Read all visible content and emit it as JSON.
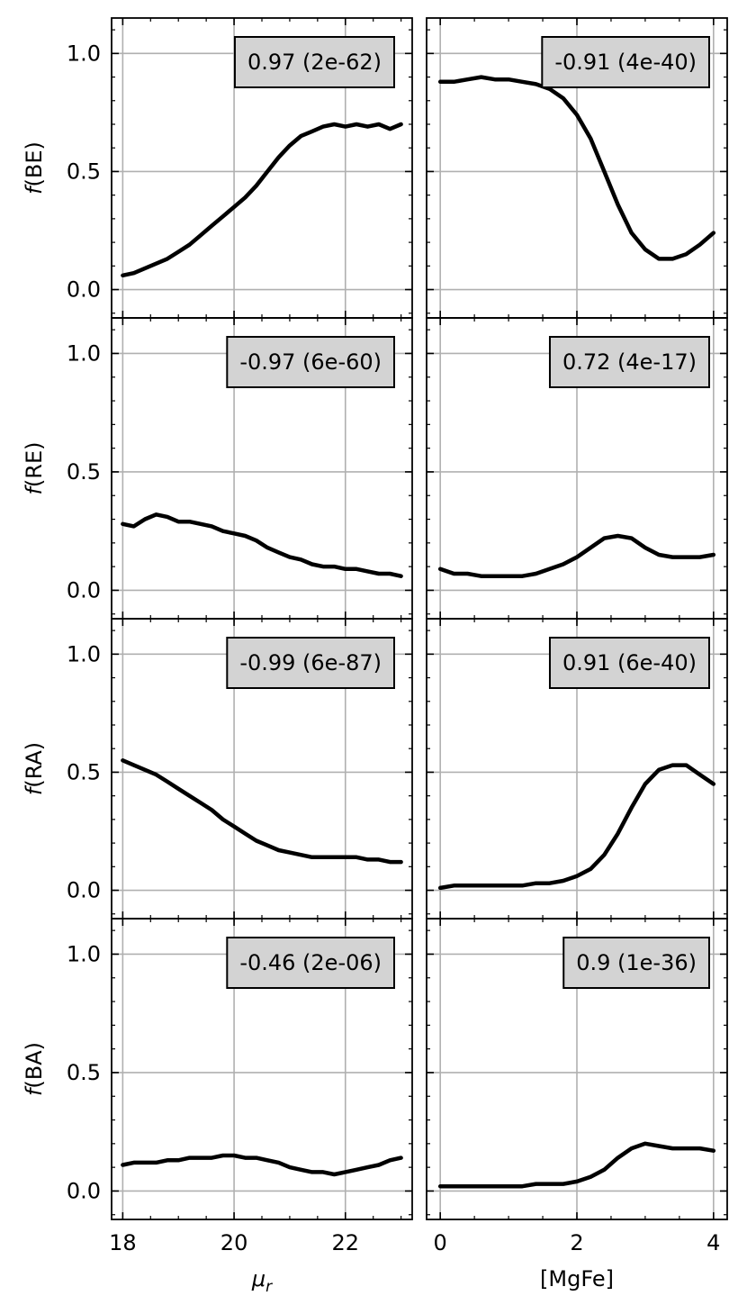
{
  "chart_data": {
    "type": "line",
    "layout": "4 rows x 2 columns",
    "x_axes": [
      {
        "label_base": "μ",
        "label_sub": "r",
        "xlim": [
          17.8,
          23.2
        ],
        "ticks": [
          18,
          20,
          22
        ],
        "tick_labels": [
          "18",
          "20",
          "22"
        ]
      },
      {
        "label": "[MgFe]",
        "xlim": [
          -0.2,
          4.2
        ],
        "ticks": [
          0,
          2,
          4
        ],
        "tick_labels": [
          "0",
          "2",
          "4"
        ]
      }
    ],
    "ylim": [
      -0.12,
      1.15
    ],
    "yticks": [
      0.0,
      0.5,
      1.0
    ],
    "ytick_labels": [
      "0.0",
      "0.5",
      "1.0"
    ],
    "grid": true,
    "line_color": "#000000",
    "annotation_box_color": "#d3d3d3",
    "rows": [
      {
        "ylabel_italic": "f",
        "ylabel_rest": "(BE)",
        "panels": [
          {
            "annotation": "0.97 (2e-62)",
            "x": [
              18.0,
              18.2,
              18.4,
              18.6,
              18.8,
              19.0,
              19.2,
              19.4,
              19.6,
              19.8,
              20.0,
              20.2,
              20.4,
              20.6,
              20.8,
              21.0,
              21.2,
              21.4,
              21.6,
              21.8,
              22.0,
              22.2,
              22.4,
              22.6,
              22.8,
              23.0
            ],
            "y": [
              0.06,
              0.07,
              0.09,
              0.11,
              0.13,
              0.16,
              0.19,
              0.23,
              0.27,
              0.31,
              0.35,
              0.39,
              0.44,
              0.5,
              0.56,
              0.61,
              0.65,
              0.67,
              0.69,
              0.7,
              0.69,
              0.7,
              0.69,
              0.7,
              0.68,
              0.7
            ]
          },
          {
            "annotation": "-0.91 (4e-40)",
            "x": [
              0.0,
              0.2,
              0.4,
              0.6,
              0.8,
              1.0,
              1.2,
              1.4,
              1.6,
              1.8,
              2.0,
              2.2,
              2.4,
              2.6,
              2.8,
              3.0,
              3.2,
              3.4,
              3.6,
              3.8,
              4.0
            ],
            "y": [
              0.88,
              0.88,
              0.89,
              0.9,
              0.89,
              0.89,
              0.88,
              0.87,
              0.85,
              0.81,
              0.74,
              0.64,
              0.5,
              0.36,
              0.24,
              0.17,
              0.13,
              0.13,
              0.15,
              0.19,
              0.24
            ]
          }
        ]
      },
      {
        "ylabel_italic": "f",
        "ylabel_rest": "(RE)",
        "panels": [
          {
            "annotation": "-0.97 (6e-60)",
            "x": [
              18.0,
              18.2,
              18.4,
              18.6,
              18.8,
              19.0,
              19.2,
              19.4,
              19.6,
              19.8,
              20.0,
              20.2,
              20.4,
              20.6,
              20.8,
              21.0,
              21.2,
              21.4,
              21.6,
              21.8,
              22.0,
              22.2,
              22.4,
              22.6,
              22.8,
              23.0
            ],
            "y": [
              0.28,
              0.27,
              0.3,
              0.32,
              0.31,
              0.29,
              0.29,
              0.28,
              0.27,
              0.25,
              0.24,
              0.23,
              0.21,
              0.18,
              0.16,
              0.14,
              0.13,
              0.11,
              0.1,
              0.1,
              0.09,
              0.09,
              0.08,
              0.07,
              0.07,
              0.06
            ]
          },
          {
            "annotation": "0.72 (4e-17)",
            "x": [
              0.0,
              0.2,
              0.4,
              0.6,
              0.8,
              1.0,
              1.2,
              1.4,
              1.6,
              1.8,
              2.0,
              2.2,
              2.4,
              2.6,
              2.8,
              3.0,
              3.2,
              3.4,
              3.6,
              3.8,
              4.0
            ],
            "y": [
              0.09,
              0.07,
              0.07,
              0.06,
              0.06,
              0.06,
              0.06,
              0.07,
              0.09,
              0.11,
              0.14,
              0.18,
              0.22,
              0.23,
              0.22,
              0.18,
              0.15,
              0.14,
              0.14,
              0.14,
              0.15
            ]
          }
        ]
      },
      {
        "ylabel_italic": "f",
        "ylabel_rest": "(RA)",
        "panels": [
          {
            "annotation": "-0.99 (6e-87)",
            "x": [
              18.0,
              18.2,
              18.4,
              18.6,
              18.8,
              19.0,
              19.2,
              19.4,
              19.6,
              19.8,
              20.0,
              20.2,
              20.4,
              20.6,
              20.8,
              21.0,
              21.2,
              21.4,
              21.6,
              21.8,
              22.0,
              22.2,
              22.4,
              22.6,
              22.8,
              23.0
            ],
            "y": [
              0.55,
              0.53,
              0.51,
              0.49,
              0.46,
              0.43,
              0.4,
              0.37,
              0.34,
              0.3,
              0.27,
              0.24,
              0.21,
              0.19,
              0.17,
              0.16,
              0.15,
              0.14,
              0.14,
              0.14,
              0.14,
              0.14,
              0.13,
              0.13,
              0.12,
              0.12
            ]
          },
          {
            "annotation": "0.91 (6e-40)",
            "x": [
              0.0,
              0.2,
              0.4,
              0.6,
              0.8,
              1.0,
              1.2,
              1.4,
              1.6,
              1.8,
              2.0,
              2.2,
              2.4,
              2.6,
              2.8,
              3.0,
              3.2,
              3.4,
              3.6,
              3.8,
              4.0
            ],
            "y": [
              0.01,
              0.02,
              0.02,
              0.02,
              0.02,
              0.02,
              0.02,
              0.03,
              0.03,
              0.04,
              0.06,
              0.09,
              0.15,
              0.24,
              0.35,
              0.45,
              0.51,
              0.53,
              0.53,
              0.49,
              0.45
            ]
          }
        ]
      },
      {
        "ylabel_italic": "f",
        "ylabel_rest": "(BA)",
        "panels": [
          {
            "annotation": "-0.46 (2e-06)",
            "x": [
              18.0,
              18.2,
              18.4,
              18.6,
              18.8,
              19.0,
              19.2,
              19.4,
              19.6,
              19.8,
              20.0,
              20.2,
              20.4,
              20.6,
              20.8,
              21.0,
              21.2,
              21.4,
              21.6,
              21.8,
              22.0,
              22.2,
              22.4,
              22.6,
              22.8,
              23.0
            ],
            "y": [
              0.11,
              0.12,
              0.12,
              0.12,
              0.13,
              0.13,
              0.14,
              0.14,
              0.14,
              0.15,
              0.15,
              0.14,
              0.14,
              0.13,
              0.12,
              0.1,
              0.09,
              0.08,
              0.08,
              0.07,
              0.08,
              0.09,
              0.1,
              0.11,
              0.13,
              0.14
            ]
          },
          {
            "annotation": "0.9 (1e-36)",
            "x": [
              0.0,
              0.2,
              0.4,
              0.6,
              0.8,
              1.0,
              1.2,
              1.4,
              1.6,
              1.8,
              2.0,
              2.2,
              2.4,
              2.6,
              2.8,
              3.0,
              3.2,
              3.4,
              3.6,
              3.8,
              4.0
            ],
            "y": [
              0.02,
              0.02,
              0.02,
              0.02,
              0.02,
              0.02,
              0.02,
              0.03,
              0.03,
              0.03,
              0.04,
              0.06,
              0.09,
              0.14,
              0.18,
              0.2,
              0.19,
              0.18,
              0.18,
              0.18,
              0.17
            ]
          }
        ]
      }
    ]
  }
}
